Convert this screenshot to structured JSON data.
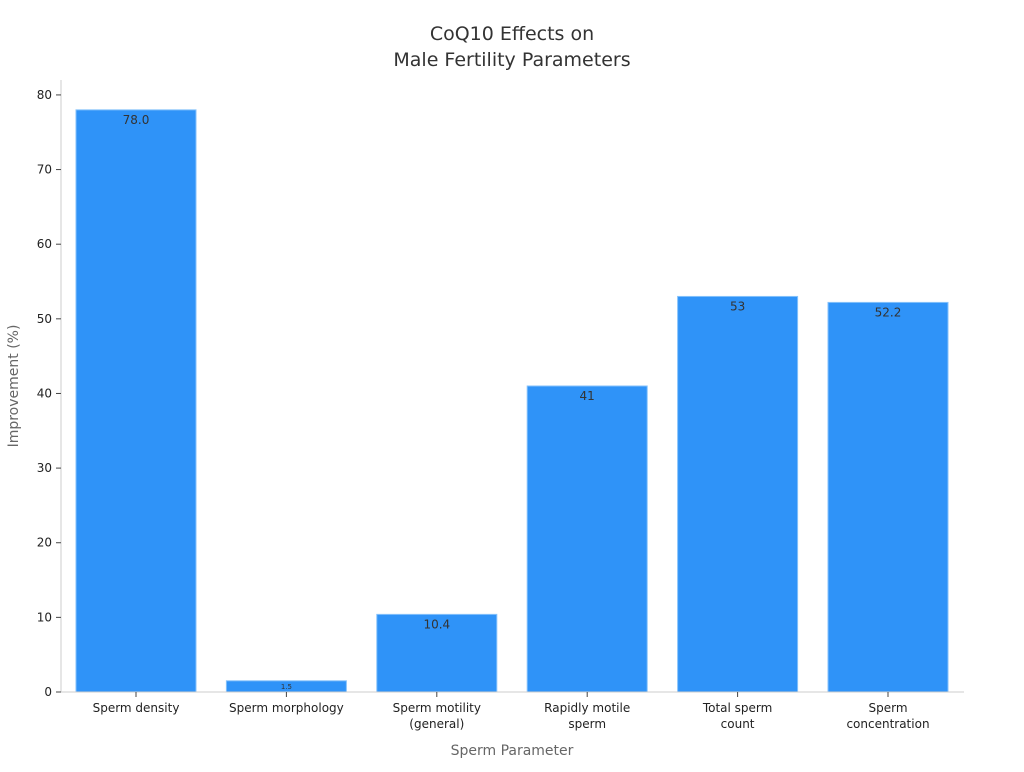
{
  "chart_data": {
    "type": "bar",
    "title_lines": [
      "CoQ10 Effects on",
      "Male Fertility Parameters"
    ],
    "xlabel": "Sperm Parameter",
    "ylabel": "Improvement (%)",
    "ylim": [
      0,
      82
    ],
    "yticks": [
      0,
      10,
      20,
      30,
      40,
      50,
      60,
      70,
      80
    ],
    "categories": [
      [
        "Sperm density"
      ],
      [
        "Sperm morphology"
      ],
      [
        "Sperm motility",
        "(general)"
      ],
      [
        "Rapidly motile",
        "sperm"
      ],
      [
        "Total sperm",
        "count"
      ],
      [
        "Sperm",
        "concentration"
      ]
    ],
    "values": [
      78.0,
      1.5,
      10.4,
      41,
      53,
      52.2
    ],
    "value_labels": [
      "78.0",
      "1.5",
      "10.4",
      "41",
      "53",
      "52.2"
    ],
    "bar_color": "#2f93f8",
    "grid": false,
    "legend": "none"
  }
}
